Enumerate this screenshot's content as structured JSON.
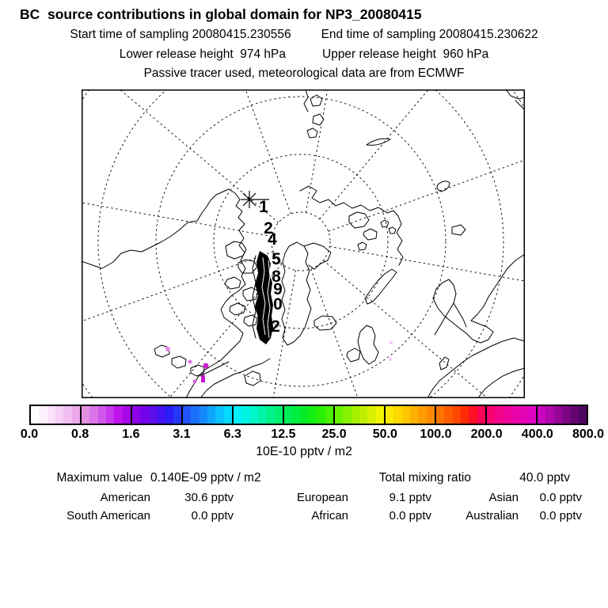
{
  "header": {
    "title": "BC  source contributions in global domain for NP3_20080415",
    "start_time": "Start time of sampling 20080415.230556",
    "end_time": "End time of sampling 20080415.230622",
    "lower_release": "Lower release height  974 hPa",
    "upper_release": "Upper release height  960 hPa",
    "tracer_note": "Passive tracer used, meteorological data are from ECMWF"
  },
  "map": {
    "projection": "north polar stereographic",
    "trajectory_labels": [
      "1",
      "2",
      "4",
      "5",
      "8",
      "9",
      "0",
      "2"
    ]
  },
  "colorbar": {
    "tick_labels": [
      "0.0",
      "0.8",
      "1.6",
      "3.1",
      "6.3",
      "12.5",
      "25.0",
      "50.0",
      "100.0",
      "200.0",
      "400.0",
      "800.0"
    ],
    "unit_label": "10E-10 pptv / m2",
    "segments": [
      [
        "#ffffff",
        "#fdf0fd",
        "#fae1fa",
        "#f6d0f6",
        "#f1bdf1",
        "#eba9eb"
      ],
      [
        "#e391e3",
        "#da74e8",
        "#d156ec",
        "#c936ee",
        "#bf13ee",
        "#a708ea"
      ],
      [
        "#8b03e6",
        "#7503ea",
        "#5d0cee",
        "#4414f2",
        "#2b1df6",
        "#2737fa"
      ],
      [
        "#2153fa",
        "#1b70fc",
        "#1589fd",
        "#0fa5fe",
        "#09c1fe",
        "#04d9fe"
      ],
      [
        "#00effa",
        "#00f4e3",
        "#00f6c8",
        "#00f5a9",
        "#00f38b",
        "#00f170"
      ],
      [
        "#00f056",
        "#00ee3d",
        "#06ec25",
        "#15ee11",
        "#29f005",
        "#46f200"
      ],
      [
        "#67f400",
        "#85f200",
        "#a3f000",
        "#c1ee00",
        "#dbf000",
        "#f3f400"
      ],
      [
        "#fcea00",
        "#fed800",
        "#ffc500",
        "#ffb100",
        "#ff9d00",
        "#ff8900"
      ],
      [
        "#ff7500",
        "#ff5d00",
        "#ff4500",
        "#ff2b04",
        "#fe1026",
        "#fb0455"
      ],
      [
        "#f70373",
        "#f20389",
        "#ee0399",
        "#ea03a7",
        "#e403b5",
        "#de03c3"
      ],
      [
        "#c905c1",
        "#b005ad",
        "#970598",
        "#7e0585",
        "#650572",
        "#4c055f"
      ]
    ]
  },
  "stats": {
    "max_label": "Maximum value",
    "max_value": "0.140E-09 pptv / m2",
    "total_label": "Total mixing ratio",
    "total_value": "40.0 pptv",
    "rows": [
      [
        {
          "label": "American",
          "value": "30.6 pptv"
        },
        {
          "label": "European",
          "value": "9.1 pptv"
        },
        {
          "label": "Asian",
          "value": "0.0 pptv"
        }
      ],
      [
        {
          "label": "South American",
          "value": "0.0 pptv"
        },
        {
          "label": "African",
          "value": "0.0 pptv"
        },
        {
          "label": "Australian",
          "value": "0.0 pptv"
        }
      ]
    ]
  },
  "chart_data": {
    "type": "heatmap",
    "title": "BC source contributions in global domain for NP3_20080415",
    "projection": "north polar stereographic map with dashed graticule and coastlines",
    "colorbar_levels": [
      0.0,
      0.8,
      1.6,
      3.1,
      6.3,
      12.5,
      25.0,
      50.0,
      100.0,
      200.0,
      400.0,
      800.0
    ],
    "colorbar_unit": "10E-10 pptv / m2",
    "maximum_value": "0.140E-09 pptv / m2",
    "total_mixing_ratio_pptv": 40.0,
    "contributions_pptv": {
      "American": 30.6,
      "European": 9.1,
      "Asian": 0.0,
      "South American": 0.0,
      "African": 0.0,
      "Australian": 0.0
    },
    "legend_position": "horizontal colorbar below map",
    "annotations": [
      "release point star marker",
      "numbered trajectory points 1-12 toward Canadian Arctic"
    ]
  }
}
